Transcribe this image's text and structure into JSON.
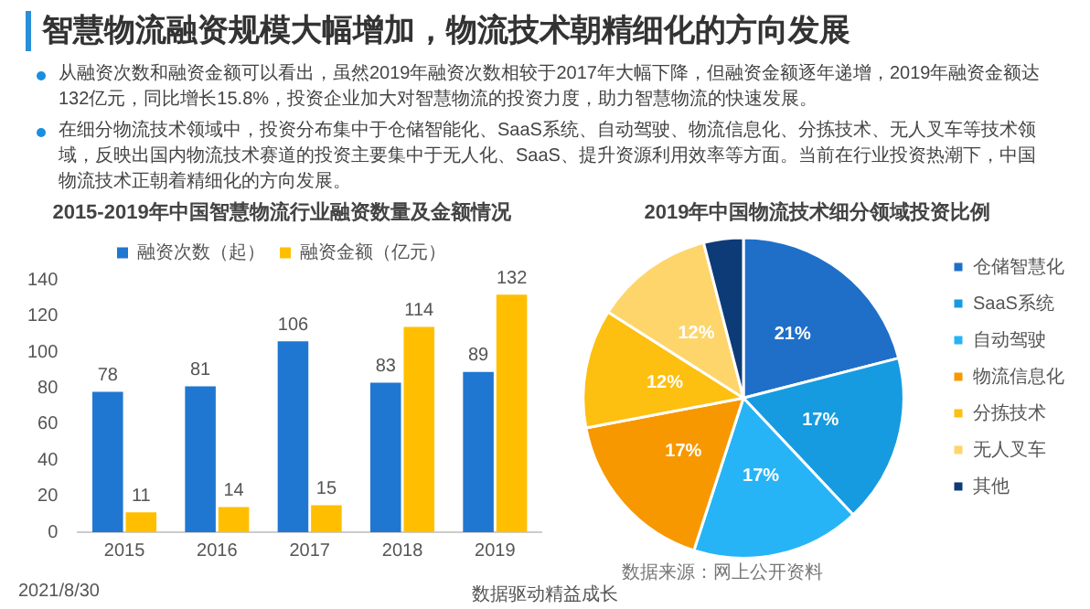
{
  "chart_data": [
    {
      "type": "other",
      "title": "智慧物流融资规模大幅增加，物流技术朝精细化的方向发展",
      "annotations": [
        "从融资次数和融资金额可以看出，虽然2019年融资次数相较于2017年大幅下降，但融资金额逐年递增，2019年融资金额达132亿元，同比增长15.8%，投资企业加大对智慧物流的投资力度，助力智慧物流的快速发展。",
        "在细分物流技术领域中，投资分布集中于仓储智能化、SaaS系统、自动驾驶、物流信息化、分拣技术、无人叉车等技术领域，反映出国内物流技术赛道的投资主要集中于无人化、SaaS、提升资源利用效率等方面。当前在行业投资热潮下，中国物流技术正朝着精细化的方向发展。"
      ]
    },
    {
      "type": "bar",
      "title": "2015-2019年中国智慧物流行业融资数量及金额情况",
      "categories": [
        "2015",
        "2016",
        "2017",
        "2018",
        "2019"
      ],
      "series": [
        {
          "name": "融资次数（起）",
          "color": "#1f77d2",
          "values": [
            78,
            81,
            106,
            83,
            89
          ]
        },
        {
          "name": "融资金额（亿元）",
          "color": "#ffbf00",
          "values": [
            11,
            14,
            15,
            114,
            132
          ]
        }
      ],
      "ylim": [
        0,
        140
      ],
      "yticks": [
        0,
        20,
        40,
        60,
        80,
        100,
        120,
        140
      ],
      "grid": false,
      "legend": "top",
      "data_labels": true
    },
    {
      "type": "pie",
      "title": "2019年中国物流技术细分领域投资比例",
      "categories": [
        "仓储智慧化",
        "SaaS系统",
        "自动驾驶",
        "物流信息化",
        "分拣技术",
        "无人叉车",
        "其他"
      ],
      "values": [
        21,
        17,
        17,
        17,
        12,
        12,
        4
      ],
      "colors": [
        "#1f6fc9",
        "#169be0",
        "#26b4f6",
        "#f79800",
        "#fdbf10",
        "#fdd56a",
        "#0d3b78"
      ],
      "value_labels": [
        "21%",
        "17%",
        "17%",
        "17%",
        "12%",
        "12%",
        null
      ],
      "legend": "right",
      "annotations": [
        "数据来源：网上公开资料"
      ]
    },
    {
      "type": "other",
      "annotations": [
        "2021/8/30",
        "数据驱动精益成长"
      ]
    }
  ]
}
